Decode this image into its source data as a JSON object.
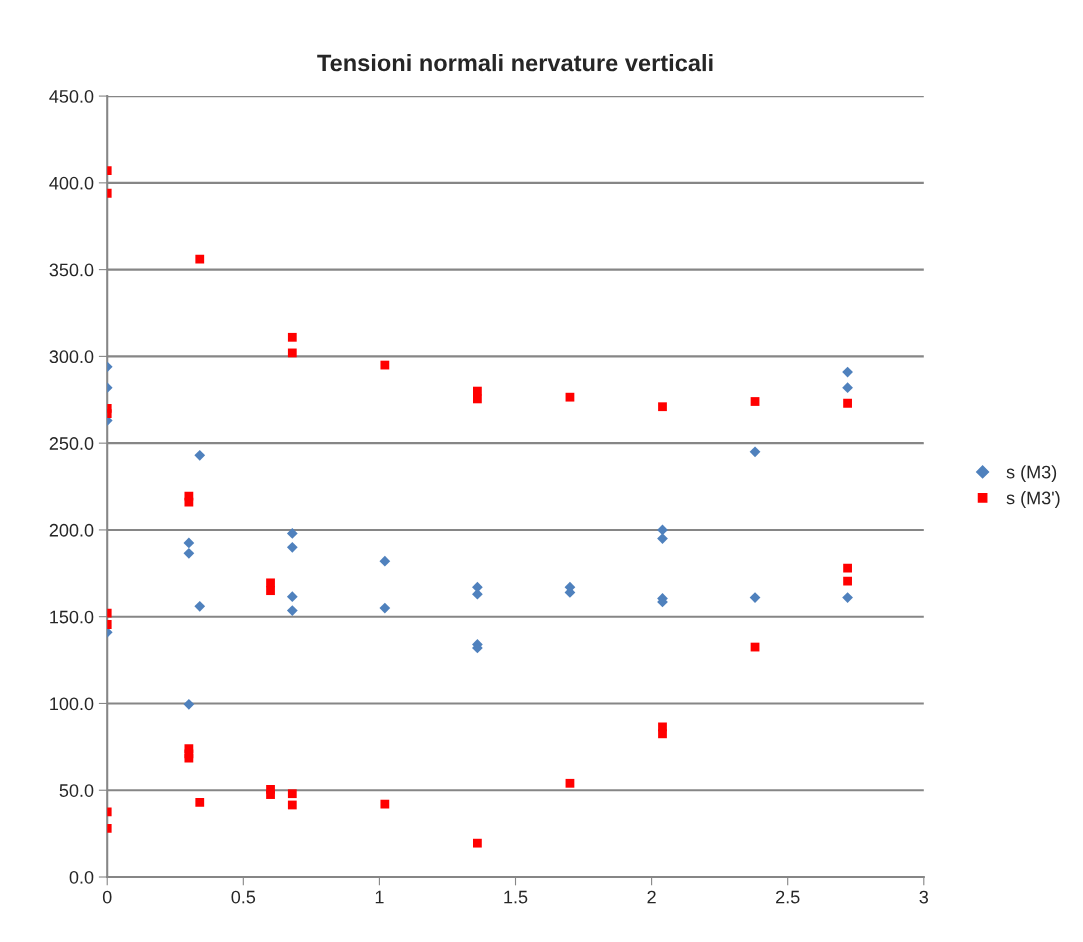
{
  "chart_data": {
    "type": "scatter",
    "title": "Tensioni normali nervature verticali",
    "xlim": [
      0,
      3
    ],
    "xticks": [
      0,
      0.5,
      1,
      1.5,
      2,
      2.5,
      3
    ],
    "ylim": [
      0,
      450
    ],
    "yticks": [
      {
        "value": 0,
        "label": "0.0"
      },
      {
        "value": 50,
        "label": "50.0"
      },
      {
        "value": 100,
        "label": "100.0"
      },
      {
        "value": 150,
        "label": "150.0"
      },
      {
        "value": 200,
        "label": "200.0"
      },
      {
        "value": 250,
        "label": "250.0"
      },
      {
        "value": 300,
        "label": "300.0"
      },
      {
        "value": 350,
        "label": "350.0"
      },
      {
        "value": 400,
        "label": "400.0"
      },
      {
        "value": 450,
        "label": "450.0"
      }
    ],
    "grid": "y",
    "legend": "right",
    "series": [
      {
        "name": "s (M3)",
        "color": "#4f81bd",
        "marker": "diamond",
        "x": [
          0,
          0,
          0,
          0,
          0.3,
          0.3,
          0.3,
          0.34,
          0.34,
          0.68,
          0.68,
          0.68,
          0.68,
          1.02,
          1.02,
          1.36,
          1.36,
          1.36,
          1.36,
          1.7,
          1.7,
          2.04,
          2.04,
          2.04,
          2.04,
          2.38,
          2.38,
          2.72,
          2.72,
          2.72
        ],
        "values": [
          294,
          282,
          263,
          141,
          192.5,
          186.5,
          99.5,
          243,
          156,
          198,
          190,
          161.5,
          153.5,
          182,
          155,
          167,
          163,
          134,
          132,
          167,
          164,
          200,
          195,
          160.5,
          158.5,
          245,
          161,
          291,
          282,
          161
        ]
      },
      {
        "name": "s (M3')",
        "color": "#ff0000",
        "marker": "square",
        "x": [
          0,
          0,
          0,
          0,
          0,
          0,
          0,
          0,
          0.3,
          0.3,
          0.3,
          0.3,
          0.3,
          0.34,
          0.34,
          0.6,
          0.6,
          0.6,
          0.6,
          0.68,
          0.68,
          0.68,
          0.68,
          1.02,
          1.02,
          1.36,
          1.36,
          1.36,
          1.7,
          1.7,
          2.04,
          2.04,
          2.04,
          2.38,
          2.38,
          2.72,
          2.72,
          2.72
        ],
        "values": [
          407,
          394,
          270,
          267,
          152,
          145.5,
          37.5,
          28,
          219.5,
          216,
          74,
          71,
          68.5,
          356,
          43,
          169.5,
          165,
          50.5,
          47.5,
          311,
          302,
          48,
          41.5,
          295,
          42,
          280,
          275.5,
          19.5,
          276.5,
          54,
          271,
          86.5,
          82.5,
          274,
          132.5,
          273,
          178,
          170.5
        ]
      }
    ]
  }
}
